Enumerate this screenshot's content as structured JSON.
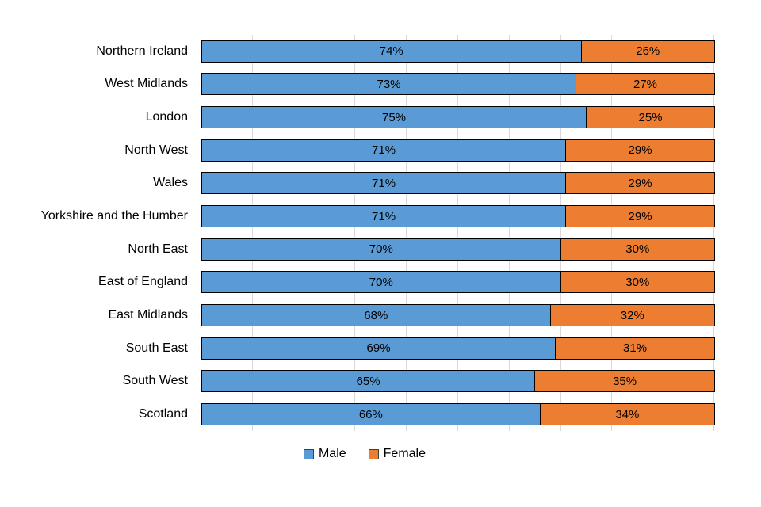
{
  "chart_data": {
    "type": "bar",
    "orientation": "horizontal",
    "stacked": true,
    "title": "",
    "xlabel": "",
    "ylabel": "",
    "xlim": [
      0,
      100
    ],
    "value_suffix": "%",
    "gridlines": {
      "interval_percent": 10,
      "color": "#d9d9d9"
    },
    "categories": [
      "Northern Ireland",
      "West Midlands",
      "London",
      "North West",
      "Wales",
      "Yorkshire and the Humber",
      "North East",
      "East of England",
      "East Midlands",
      "South East",
      "South West",
      "Scotland"
    ],
    "series": [
      {
        "name": "Male",
        "color": "#5b9bd5",
        "values": [
          74,
          73,
          75,
          71,
          71,
          71,
          70,
          70,
          68,
          69,
          65,
          66
        ]
      },
      {
        "name": "Female",
        "color": "#ed7d31",
        "values": [
          26,
          27,
          25,
          29,
          29,
          29,
          30,
          30,
          32,
          31,
          35,
          34
        ]
      }
    ],
    "legend": {
      "position": "bottom"
    }
  }
}
